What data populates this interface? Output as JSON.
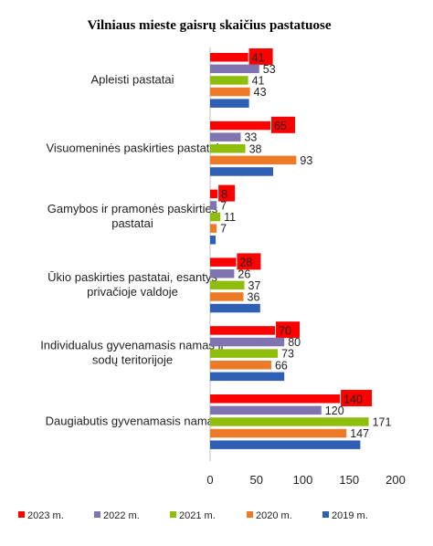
{
  "chart_data": {
    "type": "bar",
    "orientation": "horizontal",
    "title": "Vilniaus mieste gaisrų skaičius pastatuose",
    "categories": [
      [
        "Apleisti pastatai"
      ],
      [
        "Visuomeninės paskirties pastatai"
      ],
      [
        "Gamybos ir pramonės paskirties",
        "pastatai"
      ],
      [
        "Ūkio paskirties pastatai, esantys",
        "privačioje valdoje"
      ],
      [
        "Individualus gyvenamasis namas ir",
        "sodų teritorijoje"
      ],
      [
        "Daugiabutis gyvenamasis namas"
      ]
    ],
    "series": [
      {
        "name": "2023 m.",
        "color": "#ff0000",
        "values": [
          41,
          65,
          8,
          28,
          70,
          140
        ],
        "label_highlight": true
      },
      {
        "name": "2022 m.",
        "color": "#7f74b0",
        "values": [
          53,
          33,
          7,
          26,
          80,
          120
        ],
        "label_highlight": false
      },
      {
        "name": "2021 m.",
        "color": "#8fbd0c",
        "values": [
          41,
          38,
          11,
          37,
          73,
          171
        ],
        "label_highlight": false
      },
      {
        "name": "2020 m.",
        "color": "#ec7a29",
        "values": [
          43,
          93,
          7,
          36,
          66,
          147
        ],
        "label_highlight": false
      },
      {
        "name": "2019 m.",
        "color": "#2e5fb5",
        "values": [
          42,
          68,
          6,
          54,
          80,
          162
        ],
        "label_highlight": false
      }
    ],
    "label_series_count": 4,
    "xlim": [
      0,
      200
    ],
    "xticks": [
      0,
      50,
      100,
      150,
      200
    ],
    "grid": false,
    "legend_position": "bottom",
    "highlight_label_color": "#ff0000"
  }
}
